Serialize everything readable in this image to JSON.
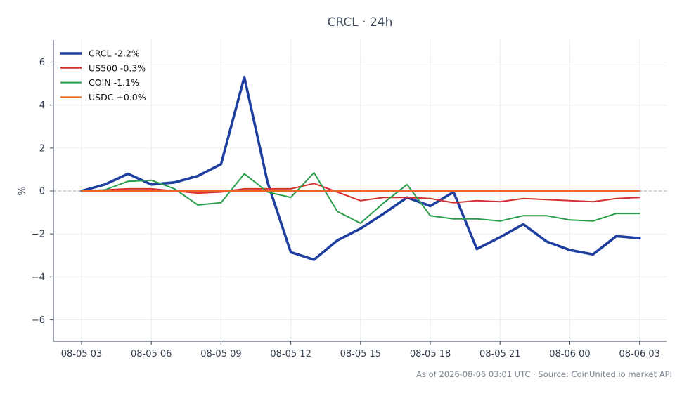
{
  "chart_data": {
    "type": "line",
    "title": "CRCL · 24h",
    "xlabel": "",
    "ylabel": "%",
    "ylim": [
      -7,
      7
    ],
    "xlim": [
      -1.2,
      25.2
    ],
    "x_ticks": [
      0,
      3,
      6,
      9,
      12,
      15,
      18,
      21,
      24
    ],
    "x_tick_labels": [
      "08-05 03",
      "08-05 06",
      "08-05 09",
      "08-05 12",
      "08-05 15",
      "08-05 18",
      "08-05 21",
      "08-06 00",
      "08-06 03"
    ],
    "y_ticks": [
      -6,
      -4,
      -2,
      0,
      2,
      4,
      6
    ],
    "y_tick_labels": [
      "−6",
      "−4",
      "−2",
      "0",
      "2",
      "4",
      "6"
    ],
    "x": [
      "08-05 03:00",
      "08-05 04:00",
      "08-05 05:00",
      "08-05 06:00",
      "08-05 07:00",
      "08-05 08:00",
      "08-05 09:00",
      "08-05 10:00",
      "08-05 11:00",
      "08-05 12:00",
      "08-05 13:00",
      "08-05 14:00",
      "08-05 15:00",
      "08-05 16:00",
      "08-05 17:00",
      "08-05 18:00",
      "08-05 19:00",
      "08-05 20:00",
      "08-05 21:00",
      "08-05 22:00",
      "08-05 23:00",
      "08-06 00:00",
      "08-06 01:00",
      "08-06 02:00",
      "08-06 03:00"
    ],
    "grid": true,
    "zero_line": "dashed",
    "legend_position": "top-left",
    "series": [
      {
        "name": "CRCL -2.2%",
        "color": "#1f3fa0",
        "width": "thick",
        "values": [
          0.0,
          0.3,
          0.8,
          0.3,
          0.4,
          0.7,
          1.25,
          5.3,
          0.4,
          -2.85,
          -3.2,
          -2.3,
          -1.75,
          -1.05,
          -0.3,
          -0.7,
          -0.05,
          -2.7,
          -2.15,
          -1.55,
          -2.35,
          -2.75,
          -2.95,
          -2.1,
          -2.2
        ]
      },
      {
        "name": "US500 -0.3%",
        "color": "#d62f2f",
        "width": "normal",
        "values": [
          0.0,
          0.05,
          0.1,
          0.1,
          0.0,
          -0.1,
          -0.05,
          0.1,
          0.1,
          0.1,
          0.35,
          -0.05,
          -0.45,
          -0.3,
          -0.3,
          -0.35,
          -0.55,
          -0.45,
          -0.5,
          -0.35,
          -0.4,
          -0.45,
          -0.5,
          -0.35,
          -0.3
        ]
      },
      {
        "name": "COIN -1.1%",
        "color": "#2a9d4a",
        "width": "normal",
        "values": [
          0.0,
          0.05,
          0.45,
          0.5,
          0.1,
          -0.65,
          -0.55,
          0.8,
          -0.05,
          -0.3,
          0.85,
          -0.95,
          -1.5,
          -0.55,
          0.3,
          -1.15,
          -1.3,
          -1.3,
          -1.4,
          -1.15,
          -1.15,
          -1.35,
          -1.4,
          -1.05,
          -1.05
        ]
      },
      {
        "name": "USDC +0.0%",
        "color": "#e8651a",
        "width": "normal",
        "values": [
          0.0,
          0.0,
          0.0,
          0.0,
          0.0,
          0.0,
          0.0,
          0.0,
          0.0,
          0.0,
          0.0,
          0.0,
          0.0,
          0.0,
          0.0,
          0.0,
          0.0,
          0.0,
          0.0,
          0.0,
          0.0,
          0.0,
          0.0,
          0.0,
          0.0
        ]
      }
    ]
  },
  "footnote": "As of 2026-08-06 03:01 UTC · Source: CoinUnited.io market API"
}
